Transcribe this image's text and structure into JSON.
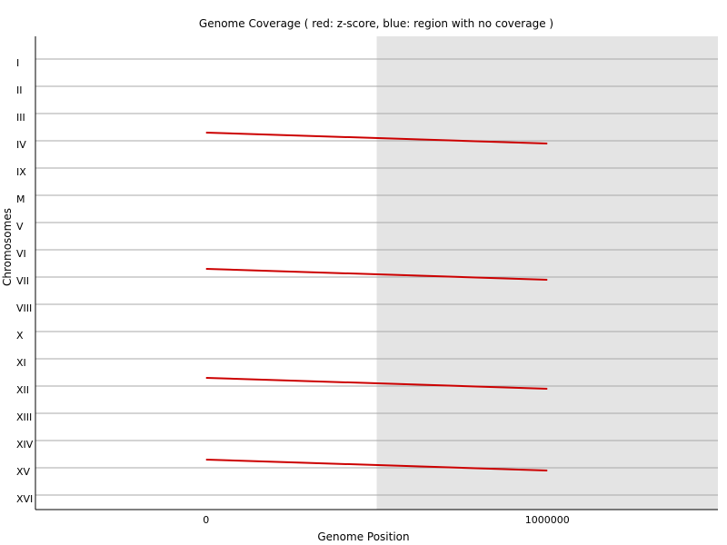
{
  "chart_data": {
    "type": "line",
    "title": "Genome Coverage ( red: z-score, blue: region with no coverage )",
    "xlabel": "Genome Position",
    "ylabel": "Chromosomes",
    "x_ticks": [
      0,
      1000000
    ],
    "x_tick_labels": [
      "0",
      "1000000"
    ],
    "xlim": [
      -500000,
      1500000
    ],
    "shaded_region_x": [
      500000,
      1500000
    ],
    "shaded_color": "#e4e4e4",
    "line_color": "#cc0000",
    "grid_color": "#a8a8a8",
    "categories": [
      "I",
      "II",
      "III",
      "IV",
      "IX",
      "M",
      "V",
      "VI",
      "VII",
      "VIII",
      "X",
      "XI",
      "XII",
      "XIII",
      "XIV",
      "XV",
      "XVI"
    ],
    "series": [
      {
        "category": "IV",
        "x": [
          0,
          1000000
        ],
        "offset": [
          0.15,
          -0.05
        ]
      },
      {
        "category": "VII",
        "x": [
          0,
          1000000
        ],
        "offset": [
          0.15,
          -0.05
        ]
      },
      {
        "category": "XII",
        "x": [
          0,
          1000000
        ],
        "offset": [
          0.15,
          -0.05
        ]
      },
      {
        "category": "XV",
        "x": [
          0,
          1000000
        ],
        "offset": [
          0.15,
          -0.05
        ]
      }
    ]
  }
}
